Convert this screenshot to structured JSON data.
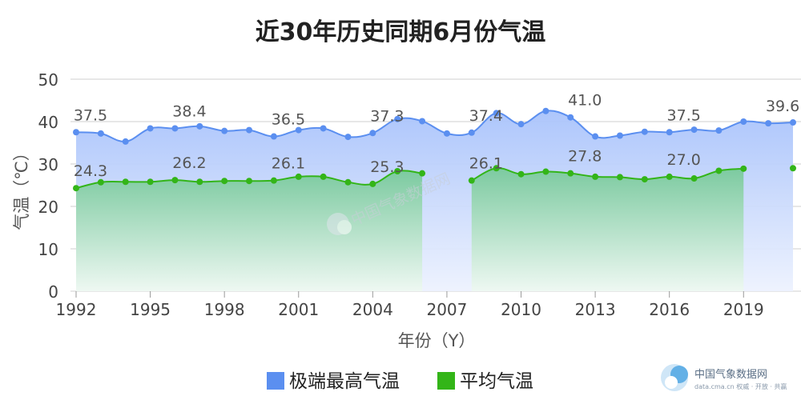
{
  "chart_data": {
    "type": "area",
    "title": "近30年历史同期6月份气温",
    "xlabel": "年份（Y）",
    "ylabel": "气温（℃）",
    "ylim": [
      0,
      50
    ],
    "y_ticks": [
      0,
      10,
      20,
      30,
      40,
      50
    ],
    "x_ticks": [
      1992,
      1995,
      1998,
      2001,
      2004,
      2007,
      2010,
      2013,
      2016,
      2019
    ],
    "x": [
      1992,
      1993,
      1994,
      1995,
      1996,
      1997,
      1998,
      1999,
      2000,
      2001,
      2002,
      2003,
      2004,
      2005,
      2006,
      2007,
      2008,
      2009,
      2010,
      2011,
      2012,
      2013,
      2014,
      2015,
      2016,
      2017,
      2018,
      2019,
      2020,
      2021
    ],
    "series": [
      {
        "name": "极端最高气温",
        "color": "#5b8ff0",
        "values": [
          37.5,
          37.2,
          35.3,
          38.4,
          38.4,
          38.9,
          37.8,
          38.0,
          36.5,
          38.0,
          38.4,
          36.4,
          37.3,
          40.6,
          40.1,
          37.2,
          37.4,
          42.0,
          39.4,
          42.5,
          41.0,
          36.5,
          36.7,
          37.6,
          37.5,
          38.1,
          37.9,
          40.0,
          39.6,
          39.8
        ],
        "labels": {
          "1992": "37.5",
          "1996": "38.4",
          "2000": "36.5",
          "2004": "37.3",
          "2008": "37.4",
          "2012": "41.0",
          "2016": "37.5",
          "2020": "39.6"
        }
      },
      {
        "name": "平均气温",
        "color": "#33b518",
        "values": [
          24.3,
          25.7,
          25.8,
          25.8,
          26.2,
          25.8,
          26.0,
          26.0,
          26.1,
          27.0,
          27.0,
          25.7,
          25.3,
          28.3,
          27.8,
          null,
          26.1,
          29.0,
          27.6,
          28.2,
          27.8,
          27.0,
          26.9,
          26.4,
          27.0,
          26.6,
          28.4,
          28.9,
          null,
          29.0
        ],
        "labels": {
          "1992": "24.3",
          "1996": "26.2",
          "2000": "26.1",
          "2004": "25.3",
          "2008": "26.1",
          "2012": "27.8",
          "2016": "27.0"
        }
      }
    ],
    "legend_position": "bottom"
  },
  "watermark": {
    "center_text": "中国气象数据网",
    "logo_name": "中国气象数据网",
    "logo_sub": "data.cma.cn 权威 · 开放 · 共赢"
  }
}
